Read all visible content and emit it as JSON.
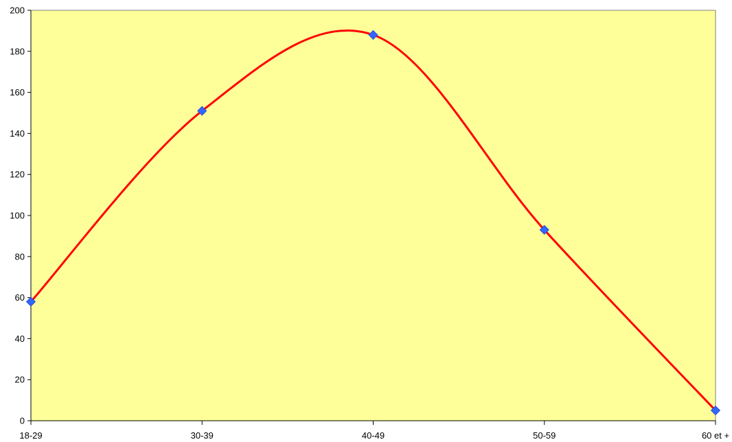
{
  "chart_data": {
    "type": "line",
    "categories": [
      "18-29",
      "30-39",
      "40-49",
      "50-59",
      "60 et +"
    ],
    "series": [
      {
        "values": [
          58,
          151,
          188,
          93,
          5
        ]
      }
    ],
    "ylim": [
      0,
      200
    ],
    "yticks": [
      "0",
      "20",
      "40",
      "60",
      "80",
      "100",
      "120",
      "140",
      "160",
      "180",
      "200"
    ],
    "title": "",
    "xlabel": "",
    "ylabel": "",
    "grid": false,
    "legend": "none",
    "smooth": true,
    "colors": {
      "plot_background": "#FFFF99",
      "line": "#FF0000",
      "marker": "#3366FF",
      "axis": "#000000"
    }
  }
}
